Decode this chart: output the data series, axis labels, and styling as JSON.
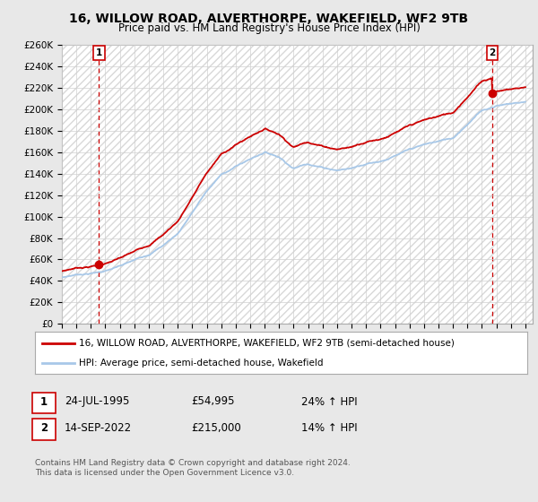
{
  "title": "16, WILLOW ROAD, ALVERTHORPE, WAKEFIELD, WF2 9TB",
  "subtitle": "Price paid vs. HM Land Registry's House Price Index (HPI)",
  "ylim": [
    0,
    260000
  ],
  "yticks": [
    0,
    20000,
    40000,
    60000,
    80000,
    100000,
    120000,
    140000,
    160000,
    180000,
    200000,
    220000,
    240000,
    260000
  ],
  "ytick_labels": [
    "£0",
    "£20K",
    "£40K",
    "£60K",
    "£80K",
    "£100K",
    "£120K",
    "£140K",
    "£160K",
    "£180K",
    "£200K",
    "£220K",
    "£240K",
    "£260K"
  ],
  "xlim_start": 1993.0,
  "xlim_end": 2025.5,
  "xticks": [
    1993,
    1994,
    1995,
    1996,
    1997,
    1998,
    1999,
    2000,
    2001,
    2002,
    2003,
    2004,
    2005,
    2006,
    2007,
    2008,
    2009,
    2010,
    2011,
    2012,
    2013,
    2014,
    2015,
    2016,
    2017,
    2018,
    2019,
    2020,
    2021,
    2022,
    2023,
    2024,
    2025
  ],
  "background_color": "#e8e8e8",
  "plot_bg_color": "#ffffff",
  "grid_color": "#d0d0d0",
  "hatch_color": "#d8d8d8",
  "hpi_color": "#a8c8e8",
  "price_color": "#cc0000",
  "transaction1": {
    "date_x": 1995.56,
    "price": 54995,
    "label": "1"
  },
  "transaction2": {
    "date_x": 2022.71,
    "price": 215000,
    "label": "2"
  },
  "legend_line1": "16, WILLOW ROAD, ALVERTHORPE, WAKEFIELD, WF2 9TB (semi-detached house)",
  "legend_line2": "HPI: Average price, semi-detached house, Wakefield",
  "table_row1": [
    "1",
    "24-JUL-1995",
    "£54,995",
    "24% ↑ HPI"
  ],
  "table_row2": [
    "2",
    "14-SEP-2022",
    "£215,000",
    "14% ↑ HPI"
  ],
  "footnote": "Contains HM Land Registry data © Crown copyright and database right 2024.\nThis data is licensed under the Open Government Licence v3.0.",
  "title_fontsize": 10,
  "subtitle_fontsize": 8.5,
  "tick_fontsize": 7.5,
  "legend_fontsize": 7.5,
  "table_fontsize": 8.5,
  "footnote_fontsize": 6.5
}
